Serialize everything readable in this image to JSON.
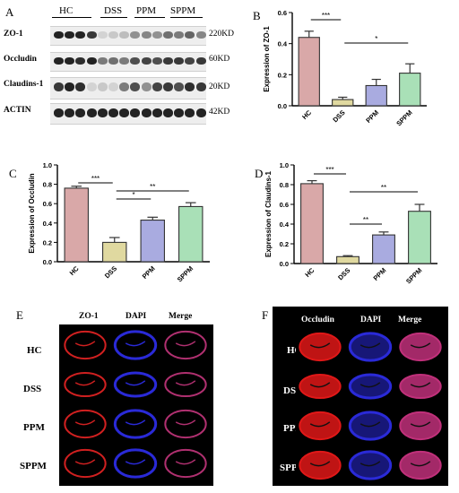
{
  "panel_letters": {
    "A": "A",
    "B": "B",
    "C": "C",
    "D": "D",
    "E": "E",
    "F": "F"
  },
  "western_blot": {
    "groups": [
      "HC",
      "DSS",
      "PPM",
      "SPPM"
    ],
    "rows": [
      {
        "label": "ZO-1",
        "size": "220KD"
      },
      {
        "label": "Occludin",
        "size": "60KD"
      },
      {
        "label": "Claudins-1",
        "size": "20KD"
      },
      {
        "label": "ACTIN",
        "size": "42KD"
      }
    ]
  },
  "chart_data": [
    {
      "type": "bar",
      "panel": "B",
      "categories": [
        "HC",
        "DSS",
        "PPM",
        "SPPM"
      ],
      "values": [
        0.44,
        0.04,
        0.13,
        0.21
      ],
      "errors": [
        0.04,
        0.015,
        0.04,
        0.06
      ],
      "colors": [
        "#d9a8a8",
        "#e0d9a0",
        "#a9abe0",
        "#a9e0b7"
      ],
      "ylabel": "Expression of ZO-1",
      "ylim": [
        0,
        0.6
      ],
      "yticks": [
        "0.0",
        "0.2",
        "0.4",
        "0.6"
      ],
      "significance": [
        {
          "from": "HC",
          "to": "DSS",
          "label": "***"
        },
        {
          "from": "DSS",
          "to": "SPPM",
          "label": "*"
        }
      ]
    },
    {
      "type": "bar",
      "panel": "C",
      "categories": [
        "HC",
        "DSS",
        "PPM",
        "SPPM"
      ],
      "values": [
        0.76,
        0.2,
        0.43,
        0.57
      ],
      "errors": [
        0.02,
        0.05,
        0.03,
        0.04
      ],
      "colors": [
        "#d9a8a8",
        "#e0d9a0",
        "#a9abe0",
        "#a9e0b7"
      ],
      "ylabel": "Expression of Occludin",
      "ylim": [
        0,
        1.0
      ],
      "yticks": [
        "0.0",
        "0.2",
        "0.4",
        "0.6",
        "0.8",
        "1.0"
      ],
      "significance": [
        {
          "from": "HC",
          "to": "DSS",
          "label": "***"
        },
        {
          "from": "DSS",
          "to": "PPM",
          "label": "*"
        },
        {
          "from": "DSS",
          "to": "SPPM",
          "label": "**"
        }
      ]
    },
    {
      "type": "bar",
      "panel": "D",
      "categories": [
        "HC",
        "DSS",
        "PPM",
        "SPPM"
      ],
      "values": [
        0.81,
        0.07,
        0.29,
        0.53
      ],
      "errors": [
        0.03,
        0.01,
        0.03,
        0.07
      ],
      "colors": [
        "#d9a8a8",
        "#e0d9a0",
        "#a9abe0",
        "#a9e0b7"
      ],
      "ylabel": "Expression of Claudins-1",
      "ylim": [
        0,
        1.0
      ],
      "yticks": [
        "0.0",
        "0.2",
        "0.4",
        "0.6",
        "0.8",
        "1.0"
      ],
      "significance": [
        {
          "from": "HC",
          "to": "DSS",
          "label": "***"
        },
        {
          "from": "DSS",
          "to": "PPM",
          "label": "**"
        },
        {
          "from": "DSS",
          "to": "SPPM",
          "label": "**"
        }
      ]
    }
  ],
  "fluor_E": {
    "columns": [
      "ZO-1",
      "DAPI",
      "Merge"
    ],
    "rows": [
      "HC",
      "DSS",
      "PPM",
      "SPPM"
    ]
  },
  "fluor_F": {
    "columns": [
      "Occludin",
      "DAPI",
      "Merge"
    ],
    "rows": [
      "HC",
      "DSS",
      "PPM",
      "SPPM"
    ]
  }
}
